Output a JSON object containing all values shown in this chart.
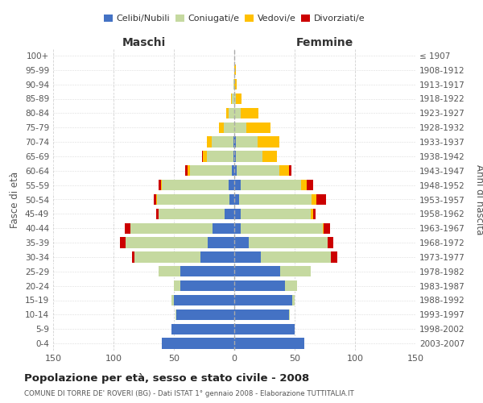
{
  "age_groups": [
    "0-4",
    "5-9",
    "10-14",
    "15-19",
    "20-24",
    "25-29",
    "30-34",
    "35-39",
    "40-44",
    "45-49",
    "50-54",
    "55-59",
    "60-64",
    "65-69",
    "70-74",
    "75-79",
    "80-84",
    "85-89",
    "90-94",
    "95-99",
    "100+"
  ],
  "birth_years": [
    "2003-2007",
    "1998-2002",
    "1993-1997",
    "1988-1992",
    "1983-1987",
    "1978-1982",
    "1973-1977",
    "1968-1972",
    "1963-1967",
    "1958-1962",
    "1953-1957",
    "1948-1952",
    "1943-1947",
    "1938-1942",
    "1933-1937",
    "1928-1932",
    "1923-1927",
    "1918-1922",
    "1913-1917",
    "1908-1912",
    "≤ 1907"
  ],
  "male": {
    "celibi": [
      60,
      52,
      48,
      50,
      45,
      45,
      28,
      22,
      18,
      8,
      4,
      5,
      2,
      1,
      1,
      0,
      0,
      0,
      0,
      0,
      0
    ],
    "coniugati": [
      0,
      0,
      1,
      2,
      5,
      18,
      55,
      68,
      68,
      55,
      60,
      55,
      35,
      22,
      18,
      9,
      5,
      2,
      1,
      0,
      0
    ],
    "vedovi": [
      0,
      0,
      0,
      0,
      0,
      0,
      0,
      0,
      0,
      0,
      1,
      1,
      2,
      3,
      4,
      4,
      2,
      1,
      0,
      0,
      0
    ],
    "divorziati": [
      0,
      0,
      0,
      0,
      0,
      0,
      2,
      5,
      5,
      2,
      2,
      2,
      2,
      1,
      0,
      0,
      0,
      0,
      0,
      0,
      0
    ]
  },
  "female": {
    "nubili": [
      58,
      50,
      45,
      48,
      42,
      38,
      22,
      12,
      5,
      5,
      4,
      5,
      2,
      1,
      1,
      0,
      0,
      0,
      0,
      0,
      0
    ],
    "coniugate": [
      0,
      0,
      1,
      2,
      10,
      25,
      58,
      65,
      68,
      58,
      60,
      50,
      35,
      22,
      18,
      10,
      5,
      1,
      0,
      0,
      0
    ],
    "vedove": [
      0,
      0,
      0,
      0,
      0,
      0,
      0,
      0,
      1,
      2,
      4,
      5,
      8,
      12,
      18,
      20,
      15,
      5,
      2,
      1,
      0
    ],
    "divorziate": [
      0,
      0,
      0,
      0,
      0,
      0,
      5,
      5,
      5,
      2,
      8,
      5,
      2,
      0,
      0,
      0,
      0,
      0,
      0,
      0,
      0
    ]
  },
  "colors": {
    "celibi": "#4472c4",
    "coniugati": "#c5d9a0",
    "vedovi": "#ffc000",
    "divorziati": "#cc0000"
  },
  "xlim": 150,
  "title": "Popolazione per età, sesso e stato civile - 2008",
  "subtitle": "COMUNE DI TORRE DE' ROVERI (BG) - Dati ISTAT 1° gennaio 2008 - Elaborazione TUTTITALIA.IT",
  "ylabel_left": "Fasce di età",
  "ylabel_right": "Anni di nascita",
  "xlabel_male": "Maschi",
  "xlabel_female": "Femmine",
  "bg_color": "#ffffff",
  "grid_color": "#cccccc",
  "legend_labels": [
    "Celibi/Nubili",
    "Coniugati/e",
    "Vedovi/e",
    "Divorziati/e"
  ]
}
